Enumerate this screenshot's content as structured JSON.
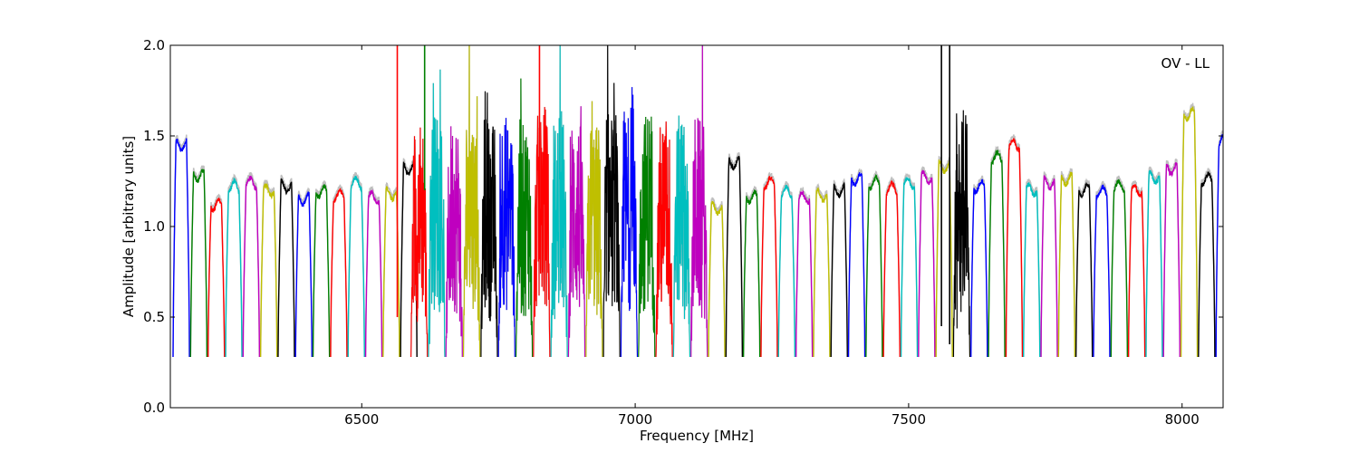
{
  "chart_data": {
    "type": "line",
    "title": "",
    "annotation": "OV - LL",
    "xlabel": "Frequency [MHz]",
    "ylabel": "Amplitude [arbitrary units]",
    "xlim": [
      6150,
      8075
    ],
    "ylim": [
      0.0,
      2.0
    ],
    "xticks": [
      6500,
      7000,
      7500,
      8000
    ],
    "xtick_labels": [
      "6500",
      "7000",
      "7500",
      "8000"
    ],
    "yticks": [
      0.0,
      0.5,
      1.0,
      1.5,
      2.0
    ],
    "ytick_labels": [
      "0.0",
      "0.5",
      "1.0",
      "1.5",
      "2.0"
    ],
    "grid": false,
    "legend": "none",
    "channel_width_mhz": 32,
    "colors": [
      "#0000ff",
      "#008000",
      "#ff0000",
      "#00bfbf",
      "#bf00bf",
      "#bfbf00",
      "#000000"
    ],
    "background_trace_color": "#bfbfbf",
    "series": [
      {
        "color": "#0000ff",
        "x_start": 6155,
        "level": 1.45,
        "noisy": false
      },
      {
        "color": "#008000",
        "x_start": 6187,
        "level": 1.28,
        "noisy": false
      },
      {
        "color": "#ff0000",
        "x_start": 6219,
        "level": 1.12,
        "noisy": false
      },
      {
        "color": "#00bfbf",
        "x_start": 6251,
        "level": 1.22,
        "noisy": false
      },
      {
        "color": "#bf00bf",
        "x_start": 6283,
        "level": 1.24,
        "noisy": false
      },
      {
        "color": "#bfbf00",
        "x_start": 6315,
        "level": 1.2,
        "noisy": false
      },
      {
        "color": "#000000",
        "x_start": 6347,
        "level": 1.22,
        "noisy": false
      },
      {
        "color": "#0000ff",
        "x_start": 6379,
        "level": 1.15,
        "noisy": false
      },
      {
        "color": "#008000",
        "x_start": 6411,
        "level": 1.19,
        "noisy": false
      },
      {
        "color": "#ff0000",
        "x_start": 6443,
        "level": 1.17,
        "noisy": false
      },
      {
        "color": "#00bfbf",
        "x_start": 6475,
        "level": 1.24,
        "noisy": false
      },
      {
        "color": "#bf00bf",
        "x_start": 6507,
        "level": 1.16,
        "noisy": false
      },
      {
        "color": "#bfbf00",
        "x_start": 6539,
        "level": 1.18,
        "noisy": false
      },
      {
        "color": "#000000",
        "x_start": 6571,
        "level": 1.32,
        "noisy": false
      },
      {
        "color": "#ff0000",
        "x_start": 6590,
        "level": 1.05,
        "noisy": true
      },
      {
        "color": "#00bfbf",
        "x_start": 6622,
        "level": 1.1,
        "noisy": true
      },
      {
        "color": "#bf00bf",
        "x_start": 6654,
        "level": 1.05,
        "noisy": true
      },
      {
        "color": "#bfbf00",
        "x_start": 6686,
        "level": 1.1,
        "noisy": true
      },
      {
        "color": "#000000",
        "x_start": 6718,
        "level": 1.05,
        "noisy": true
      },
      {
        "color": "#0000ff",
        "x_start": 6750,
        "level": 1.1,
        "noisy": true
      },
      {
        "color": "#008000",
        "x_start": 6782,
        "level": 1.05,
        "noisy": true
      },
      {
        "color": "#ff0000",
        "x_start": 6814,
        "level": 1.1,
        "noisy": true
      },
      {
        "color": "#00bfbf",
        "x_start": 6846,
        "level": 1.05,
        "noisy": true
      },
      {
        "color": "#bf00bf",
        "x_start": 6878,
        "level": 1.05,
        "noisy": true
      },
      {
        "color": "#bfbf00",
        "x_start": 6910,
        "level": 1.05,
        "noisy": true
      },
      {
        "color": "#000000",
        "x_start": 6942,
        "level": 1.1,
        "noisy": true
      },
      {
        "color": "#0000ff",
        "x_start": 6974,
        "level": 1.1,
        "noisy": true
      },
      {
        "color": "#008000",
        "x_start": 7006,
        "level": 1.1,
        "noisy": true
      },
      {
        "color": "#ff0000",
        "x_start": 7038,
        "level": 1.05,
        "noisy": true
      },
      {
        "color": "#00bfbf",
        "x_start": 7070,
        "level": 1.05,
        "noisy": true
      },
      {
        "color": "#bf00bf",
        "x_start": 7102,
        "level": 1.05,
        "noisy": true
      },
      {
        "color": "#bfbf00",
        "x_start": 7134,
        "level": 1.1,
        "noisy": false
      },
      {
        "color": "#000000",
        "x_start": 7166,
        "level": 1.35,
        "noisy": false
      },
      {
        "color": "#008000",
        "x_start": 7198,
        "level": 1.16,
        "noisy": false
      },
      {
        "color": "#ff0000",
        "x_start": 7230,
        "level": 1.24,
        "noisy": false
      },
      {
        "color": "#00bfbf",
        "x_start": 7262,
        "level": 1.19,
        "noisy": false
      },
      {
        "color": "#bf00bf",
        "x_start": 7294,
        "level": 1.16,
        "noisy": false
      },
      {
        "color": "#bfbf00",
        "x_start": 7326,
        "level": 1.17,
        "noisy": false
      },
      {
        "color": "#000000",
        "x_start": 7358,
        "level": 1.2,
        "noisy": false
      },
      {
        "color": "#0000ff",
        "x_start": 7390,
        "level": 1.26,
        "noisy": false
      },
      {
        "color": "#008000",
        "x_start": 7422,
        "level": 1.24,
        "noisy": false
      },
      {
        "color": "#ff0000",
        "x_start": 7454,
        "level": 1.21,
        "noisy": false
      },
      {
        "color": "#00bfbf",
        "x_start": 7486,
        "level": 1.24,
        "noisy": false
      },
      {
        "color": "#bf00bf",
        "x_start": 7518,
        "level": 1.27,
        "noisy": false
      },
      {
        "color": "#bfbf00",
        "x_start": 7550,
        "level": 1.33,
        "noisy": false
      },
      {
        "color": "#000000",
        "x_start": 7582,
        "level": 1.1,
        "noisy": true
      },
      {
        "color": "#0000ff",
        "x_start": 7614,
        "level": 1.22,
        "noisy": false
      },
      {
        "color": "#008000",
        "x_start": 7646,
        "level": 1.38,
        "noisy": false
      },
      {
        "color": "#ff0000",
        "x_start": 7678,
        "level": 1.45,
        "noisy": false
      },
      {
        "color": "#00bfbf",
        "x_start": 7710,
        "level": 1.2,
        "noisy": false
      },
      {
        "color": "#bf00bf",
        "x_start": 7742,
        "level": 1.24,
        "noisy": false
      },
      {
        "color": "#bfbf00",
        "x_start": 7774,
        "level": 1.26,
        "noisy": false
      },
      {
        "color": "#000000",
        "x_start": 7806,
        "level": 1.2,
        "noisy": false
      },
      {
        "color": "#0000ff",
        "x_start": 7838,
        "level": 1.19,
        "noisy": false
      },
      {
        "color": "#008000",
        "x_start": 7870,
        "level": 1.22,
        "noisy": false
      },
      {
        "color": "#ff0000",
        "x_start": 7902,
        "level": 1.2,
        "noisy": false
      },
      {
        "color": "#00bfbf",
        "x_start": 7934,
        "level": 1.27,
        "noisy": false
      },
      {
        "color": "#bf00bf",
        "x_start": 7966,
        "level": 1.32,
        "noisy": false
      },
      {
        "color": "#bfbf00",
        "x_start": 7998,
        "level": 1.62,
        "noisy": false
      },
      {
        "color": "#000000",
        "x_start": 8030,
        "level": 1.26,
        "noisy": false
      },
      {
        "color": "#0000ff",
        "x_start": 8062,
        "level": 1.48,
        "noisy": false
      }
    ],
    "spikes": [
      {
        "color": "#ff0000",
        "x": 6565,
        "y_from": 0.5,
        "y_to": 2.0
      },
      {
        "color": "#008000",
        "x": 6615,
        "y_from": 1.2,
        "y_to": 2.0
      },
      {
        "color": "#ff0000",
        "x": 6825,
        "y_from": 1.0,
        "y_to": 2.0
      },
      {
        "color": "#000000",
        "x": 7560,
        "y_from": 0.45,
        "y_to": 2.0
      },
      {
        "color": "#000000",
        "x": 7575,
        "y_from": 0.35,
        "y_to": 2.0
      }
    ]
  }
}
